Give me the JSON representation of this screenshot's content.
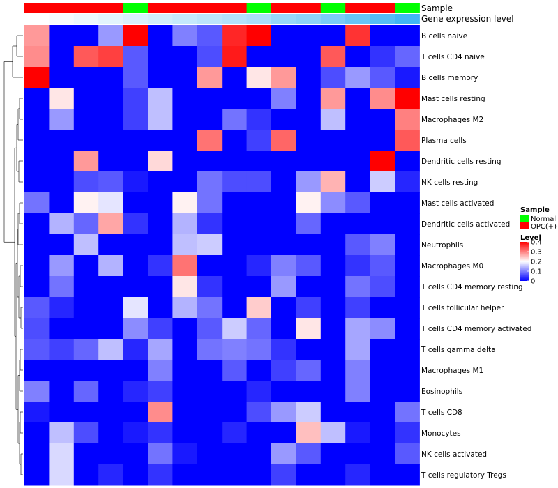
{
  "chart_data": {
    "type": "heatmap",
    "annotation_tracks": [
      "Sample",
      "Gene expression level"
    ],
    "sample_groups": [
      "OPC(+)",
      "OPC(+)",
      "OPC(+)",
      "OPC(+)",
      "Normal",
      "OPC(+)",
      "OPC(+)",
      "OPC(+)",
      "OPC(+)",
      "Normal",
      "OPC(+)",
      "OPC(+)",
      "Normal",
      "OPC(+)",
      "OPC(+)",
      "Normal"
    ],
    "gene_expression_level": [
      0.0,
      0.05,
      0.1,
      0.15,
      0.2,
      0.25,
      0.3,
      0.35,
      0.4,
      0.45,
      0.55,
      0.6,
      0.7,
      0.8,
      0.9,
      1.0
    ],
    "rows": [
      "B cells naive",
      "T cells CD4 naive",
      "B cells memory",
      "Mast cells resting",
      "Macrophages M2",
      "Plasma cells",
      "Dendritic cells resting",
      "NK cells resting",
      "Mast cells activated",
      "Dendritic cells activated",
      "Neutrophils",
      "Macrophages M0",
      "T cells CD4 memory resting",
      "T cells follicular helper",
      "T cells CD4 memory activated",
      "T cells gamma delta",
      "Macrophages M1",
      "Eosinophils",
      "T cells CD8",
      "Monocytes",
      "NK cells activated",
      "T cells regulatory  Tregs"
    ],
    "values": [
      [
        0.28,
        0.0,
        0.0,
        0.12,
        0.4,
        0.0,
        0.1,
        0.07,
        0.37,
        0.4,
        0.0,
        0.0,
        0.0,
        0.36,
        0.0,
        0.0
      ],
      [
        0.29,
        0.0,
        0.33,
        0.35,
        0.07,
        0.0,
        0.0,
        0.06,
        0.38,
        0.0,
        0.0,
        0.0,
        0.33,
        0.0,
        0.04,
        0.08
      ],
      [
        0.4,
        0.0,
        0.0,
        0.0,
        0.07,
        0.0,
        0.0,
        0.28,
        0.0,
        0.22,
        0.28,
        0.0,
        0.06,
        0.12,
        0.07,
        0.02
      ],
      [
        0.0,
        0.22,
        0.0,
        0.0,
        0.05,
        0.15,
        0.0,
        0.0,
        0.0,
        0.0,
        0.1,
        0.0,
        0.28,
        0.0,
        0.29,
        0.4
      ],
      [
        0.0,
        0.12,
        0.0,
        0.0,
        0.05,
        0.15,
        0.0,
        0.0,
        0.09,
        0.04,
        0.0,
        0.0,
        0.15,
        0.0,
        0.0,
        0.3
      ],
      [
        0.0,
        0.0,
        0.0,
        0.0,
        0.0,
        0.0,
        0.0,
        0.31,
        0.0,
        0.05,
        0.32,
        0.0,
        0.0,
        0.0,
        0.0,
        0.33
      ],
      [
        0.0,
        0.0,
        0.28,
        0.0,
        0.0,
        0.23,
        0.0,
        0.0,
        0.0,
        0.0,
        0.0,
        0.0,
        0.0,
        0.0,
        0.4,
        0.0
      ],
      [
        0.0,
        0.0,
        0.06,
        0.07,
        0.02,
        0.0,
        0.0,
        0.09,
        0.06,
        0.06,
        0.0,
        0.12,
        0.26,
        0.0,
        0.16,
        0.03
      ],
      [
        0.09,
        0.0,
        0.21,
        0.18,
        0.0,
        0.0,
        0.21,
        0.09,
        0.0,
        0.0,
        0.0,
        0.21,
        0.11,
        0.07,
        0.0,
        0.0
      ],
      [
        0.0,
        0.14,
        0.08,
        0.27,
        0.04,
        0.0,
        0.14,
        0.04,
        0.0,
        0.0,
        0.0,
        0.08,
        0.0,
        0.0,
        0.0,
        0.0
      ],
      [
        0.0,
        0.0,
        0.15,
        0.0,
        0.0,
        0.0,
        0.15,
        0.16,
        0.0,
        0.0,
        0.0,
        0.0,
        0.0,
        0.07,
        0.1,
        0.0
      ],
      [
        0.0,
        0.12,
        0.0,
        0.14,
        0.0,
        0.04,
        0.31,
        0.0,
        0.0,
        0.03,
        0.1,
        0.07,
        0.0,
        0.04,
        0.07,
        0.0
      ],
      [
        0.0,
        0.09,
        0.0,
        0.0,
        0.0,
        0.0,
        0.22,
        0.04,
        0.0,
        0.0,
        0.12,
        0.0,
        0.0,
        0.09,
        0.06,
        0.0
      ],
      [
        0.07,
        0.03,
        0.0,
        0.0,
        0.18,
        0.0,
        0.14,
        0.09,
        0.0,
        0.24,
        0.0,
        0.05,
        0.0,
        0.05,
        0.0,
        0.0
      ],
      [
        0.06,
        0.0,
        0.0,
        0.0,
        0.11,
        0.05,
        0.0,
        0.07,
        0.16,
        0.08,
        0.0,
        0.22,
        0.0,
        0.13,
        0.11,
        0.0
      ],
      [
        0.07,
        0.05,
        0.08,
        0.15,
        0.03,
        0.13,
        0.0,
        0.09,
        0.1,
        0.09,
        0.04,
        0.0,
        0.0,
        0.13,
        0.0,
        0.0
      ],
      [
        0.0,
        0.0,
        0.0,
        0.0,
        0.0,
        0.1,
        0.0,
        0.0,
        0.07,
        0.0,
        0.05,
        0.08,
        0.0,
        0.1,
        0.0,
        0.0
      ],
      [
        0.1,
        0.0,
        0.08,
        0.0,
        0.03,
        0.05,
        0.0,
        0.0,
        0.0,
        0.03,
        0.0,
        0.0,
        0.0,
        0.1,
        0.0,
        0.0
      ],
      [
        0.02,
        0.0,
        0.0,
        0.0,
        0.0,
        0.29,
        0.0,
        0.0,
        0.0,
        0.06,
        0.12,
        0.16,
        0.0,
        0.0,
        0.0,
        0.09
      ],
      [
        0.0,
        0.15,
        0.06,
        0.0,
        0.02,
        0.04,
        0.0,
        0.0,
        0.03,
        0.0,
        0.0,
        0.25,
        0.15,
        0.02,
        0.0,
        0.04
      ],
      [
        0.0,
        0.17,
        0.0,
        0.0,
        0.0,
        0.09,
        0.02,
        0.0,
        0.0,
        0.0,
        0.12,
        0.07,
        0.0,
        0.0,
        0.0,
        0.07
      ],
      [
        0.0,
        0.17,
        0.0,
        0.03,
        0.0,
        0.04,
        0.0,
        0.0,
        0.0,
        0.0,
        0.05,
        0.0,
        0.0,
        0.03,
        0.0,
        0.0
      ]
    ],
    "value_range": [
      0,
      0.4
    ],
    "colors": {
      "low": "#0000ff",
      "mid": "#ffffff",
      "high": "#ff0000",
      "normal": "#00ff00",
      "opc": "#ff0000",
      "level_low": "#ffffff",
      "level_high": "#41b6f4"
    },
    "legends": {
      "sample": {
        "title": "Sample",
        "items": [
          {
            "label": "Normal",
            "color": "#00ff00"
          },
          {
            "label": "OPC(+)",
            "color": "#ff0000"
          }
        ]
      },
      "level": {
        "title": "Level",
        "ticks": [
          "0.4",
          "0.3",
          "0.2",
          "0.1",
          "0"
        ],
        "tick_values": [
          0.4,
          0.3,
          0.2,
          0.1,
          0
        ]
      }
    }
  }
}
